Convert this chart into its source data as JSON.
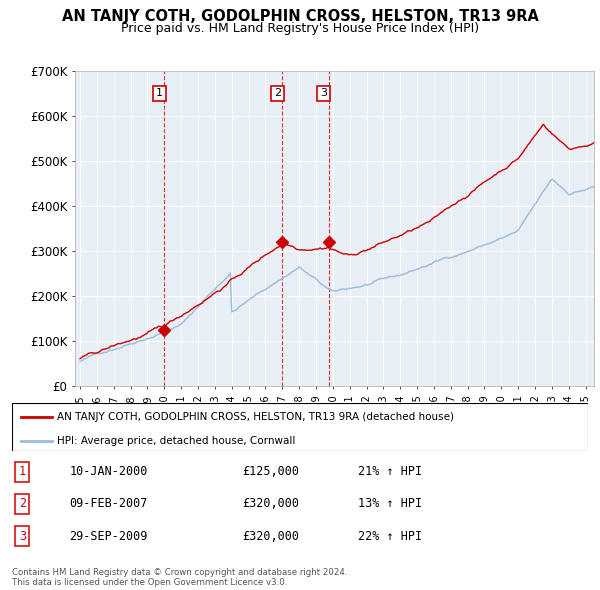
{
  "title": "AN TANJY COTH, GODOLPHIN CROSS, HELSTON, TR13 9RA",
  "subtitle": "Price paid vs. HM Land Registry's House Price Index (HPI)",
  "title_fontsize": 10.5,
  "subtitle_fontsize": 9,
  "ylabel_ticks": [
    "£0",
    "£100K",
    "£200K",
    "£300K",
    "£400K",
    "£500K",
    "£600K",
    "£700K"
  ],
  "ylim": [
    0,
    700000
  ],
  "legend_line1": "AN TANJY COTH, GODOLPHIN CROSS, HELSTON, TR13 9RA (detached house)",
  "legend_line2": "HPI: Average price, detached house, Cornwall",
  "sale_color": "#cc0000",
  "hpi_color": "#99bbdd",
  "bg_color": "#e8eef5",
  "sale_points": [
    {
      "year_idx": 60,
      "value": 125000,
      "label": "1"
    },
    {
      "year_idx": 144,
      "value": 320000,
      "label": "2"
    },
    {
      "year_idx": 177,
      "value": 320000,
      "label": "3"
    }
  ],
  "table_rows": [
    {
      "num": "1",
      "date": "10-JAN-2000",
      "price": "£125,000",
      "change": "21% ↑ HPI"
    },
    {
      "num": "2",
      "date": "09-FEB-2007",
      "price": "£320,000",
      "change": "13% ↑ HPI"
    },
    {
      "num": "3",
      "date": "29-SEP-2009",
      "price": "£320,000",
      "change": "22% ↑ HPI"
    }
  ],
  "footer": "Contains HM Land Registry data © Crown copyright and database right 2024.\nThis data is licensed under the Open Government Licence v3.0."
}
